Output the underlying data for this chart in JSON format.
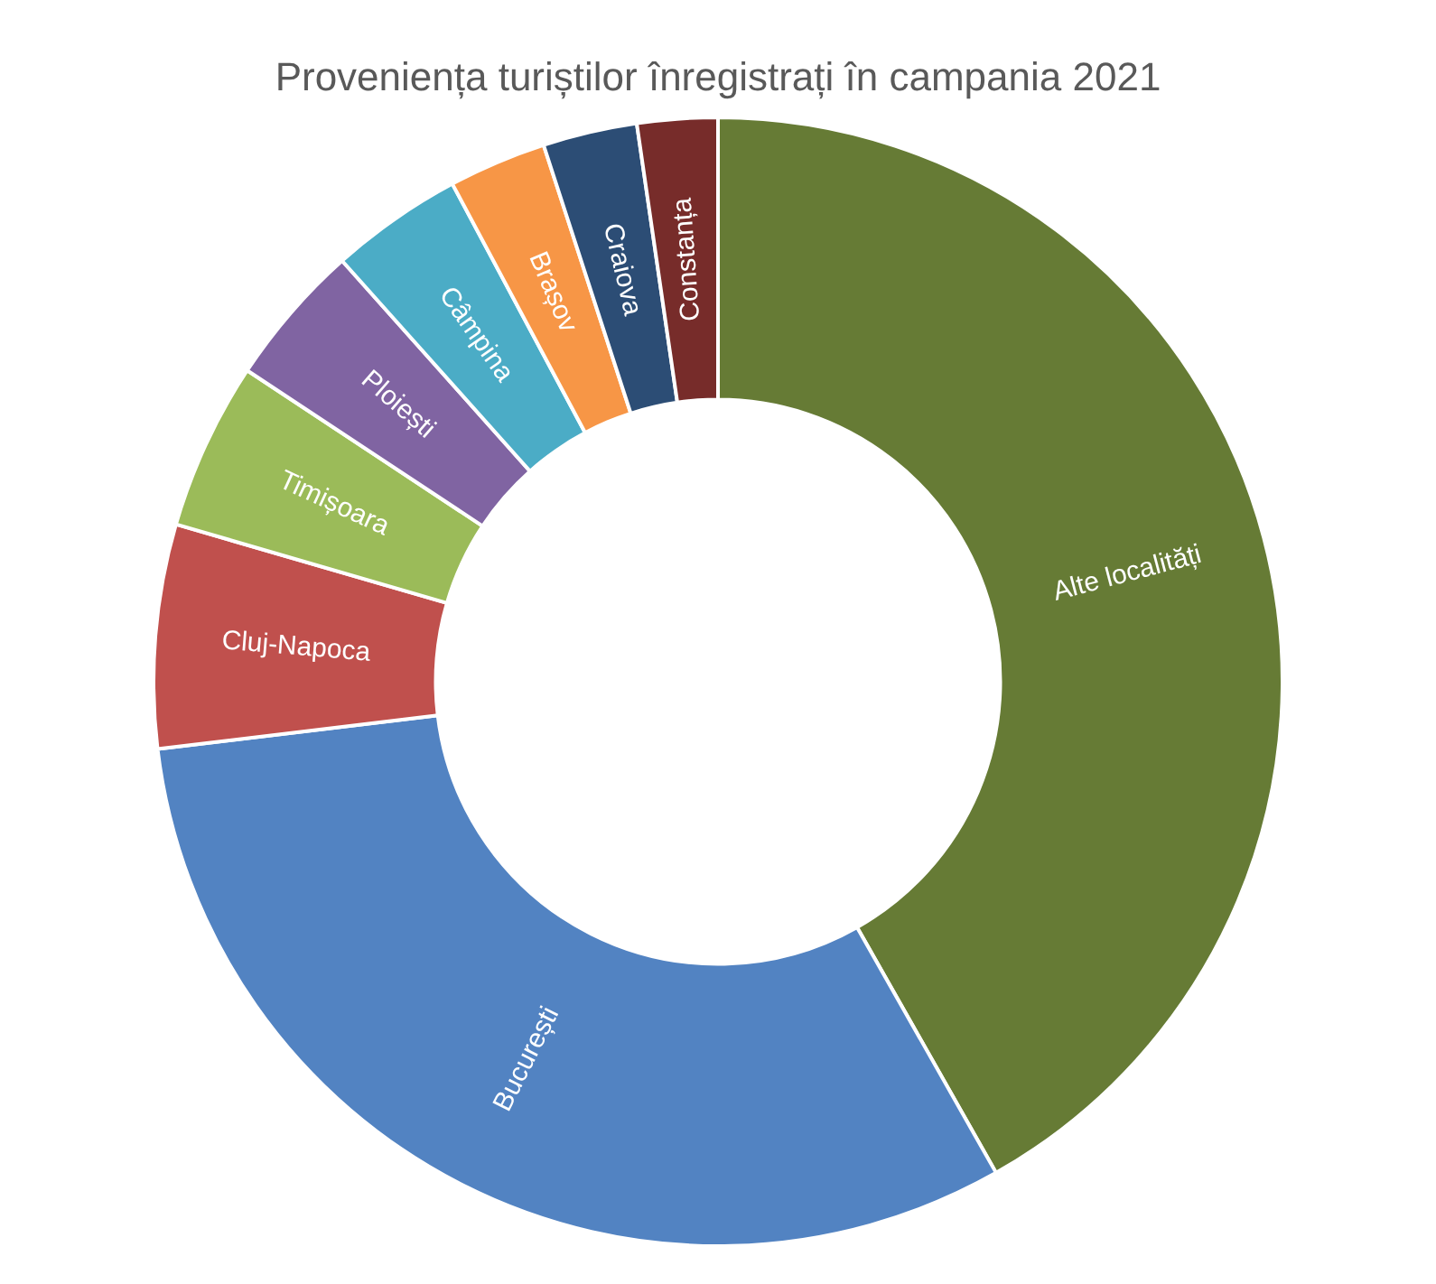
{
  "chart_data": {
    "type": "donut",
    "title": "Proveniența turiștilor înregistrați în campania 2021",
    "categories": [
      "Alte localități",
      "București",
      "Cluj-Napoca",
      "Timișoara",
      "Ploiești",
      "Câmpina",
      "Brașov",
      "Craiova",
      "Constanța"
    ],
    "values": [
      41.8,
      31.3,
      6.4,
      4.8,
      4.1,
      3.8,
      2.8,
      2.7,
      2.3
    ],
    "colors": [
      "#667b35",
      "#5283c2",
      "#c0504d",
      "#9bbb59",
      "#8064a2",
      "#4bacc6",
      "#f79646",
      "#2c4d75",
      "#772c2a"
    ],
    "legend": false
  }
}
